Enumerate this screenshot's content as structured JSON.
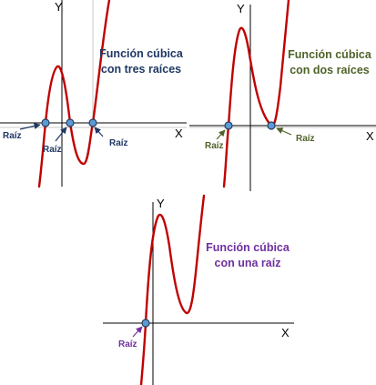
{
  "colors": {
    "curve": "#c00000",
    "root_fill": "#5b9bd5",
    "axis": "#000000",
    "grid": "#c8c8c8"
  },
  "panels": [
    {
      "title_lines": [
        "Función cúbica",
        "con tres raíces"
      ],
      "title_color": "#1f3864",
      "x_axis_letter": "X",
      "y_axis_letter": "Y",
      "root_label": "Raíz",
      "root_label_color": "#1f3864",
      "root_count": 3
    },
    {
      "title_lines": [
        "Función cúbica",
        "con dos raíces"
      ],
      "title_color": "#4f6228",
      "x_axis_letter": "X",
      "y_axis_letter": "Y",
      "root_label": "Raíz",
      "root_label_color": "#4f6228",
      "root_count": 2
    },
    {
      "title_lines": [
        "Función cúbica",
        "con una raíz"
      ],
      "title_color": "#7030a0",
      "x_axis_letter": "X",
      "y_axis_letter": "Y",
      "root_label": "Raíz",
      "root_label_color": "#7030a0",
      "root_count": 1
    }
  ]
}
